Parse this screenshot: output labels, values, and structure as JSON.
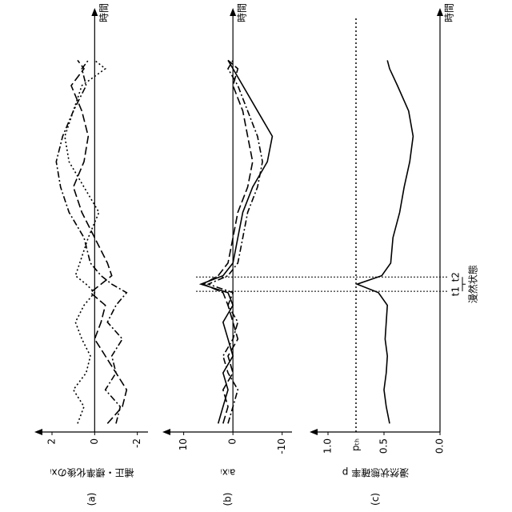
{
  "chart_data": [
    {
      "type": "line",
      "label": "(a)",
      "ylabel": "補正・標準化後のxᵢ",
      "xlabel": "時間",
      "x": [
        2,
        6,
        10,
        14,
        18,
        22,
        26,
        30,
        33,
        35,
        37,
        40,
        46,
        52,
        58,
        64,
        70,
        76,
        82,
        86,
        88
      ],
      "xlim": [
        0,
        100
      ],
      "ylim": [
        -2.5,
        2.75
      ],
      "yticks": [
        2,
        0,
        -2
      ],
      "series": [
        {
          "color": "#000",
          "dash": "dashdot",
          "values": [
            -1,
            -1.2,
            -0.5,
            -1,
            -0.8,
            -1.3,
            -0.6,
            -1,
            -1.5,
            -0.8,
            -0.3,
            0.2,
            0.5,
            1.2,
            1.6,
            1.8,
            1.5,
            1,
            0.4,
            0.6,
            0.3
          ]
        },
        {
          "color": "#000",
          "dash": "dotted",
          "values": [
            0.8,
            0.5,
            1,
            0.4,
            0.2,
            0.6,
            0.9,
            0.5,
            0,
            0.4,
            0.9,
            0.7,
            0.3,
            -0.2,
            0.5,
            1.2,
            1.4,
            1,
            0.6,
            -0.5,
            0
          ]
        },
        {
          "color": "#000",
          "dash": "longdash",
          "values": [
            -0.6,
            -1.3,
            -1.5,
            -1,
            -0.5,
            0,
            -0.3,
            -0.5,
            0.2,
            -0.3,
            -0.8,
            -0.6,
            0,
            0.6,
            1,
            0.5,
            0.3,
            0.6,
            1.1,
            0.5,
            0.8
          ]
        }
      ]
    },
    {
      "type": "line",
      "label": "(b)",
      "ylabel": "aᵢxᵢ",
      "xlabel": "時間",
      "x": [
        2,
        6,
        10,
        14,
        18,
        22,
        26,
        30,
        33,
        35,
        37,
        40,
        46,
        52,
        58,
        64,
        70,
        76,
        82,
        86,
        88
      ],
      "xlim": [
        0,
        100
      ],
      "ylim": [
        -12,
        14
      ],
      "yticks": [
        10,
        0,
        -10
      ],
      "series": [
        {
          "color": "#000",
          "dash": "solid",
          "values": [
            3,
            2,
            1,
            2,
            0,
            1,
            2,
            0,
            1,
            6.5,
            2,
            0,
            -1,
            -2,
            -4,
            -7,
            -8,
            -5,
            -2,
            0,
            1
          ]
        },
        {
          "color": "#000",
          "dash": "dashdot",
          "values": [
            1,
            0,
            -1,
            1,
            2,
            0,
            -1,
            1,
            0,
            5,
            1,
            -1,
            -2,
            -3,
            -5,
            -6,
            -5,
            -3,
            -1,
            1,
            0
          ]
        },
        {
          "color": "#000",
          "dash": "longdash",
          "values": [
            2,
            1,
            2,
            0,
            1,
            -1,
            0,
            1,
            2,
            6,
            3,
            1,
            0,
            -1,
            -3,
            -4,
            -3,
            -2,
            0,
            -1,
            1
          ]
        }
      ]
    },
    {
      "type": "line",
      "label": "(c)",
      "ylabel": "漫然状態確率 p",
      "xlabel": "時間",
      "x": [
        2,
        6,
        10,
        14,
        18,
        22,
        26,
        30,
        33,
        35,
        37,
        40,
        46,
        52,
        58,
        64,
        70,
        76,
        82,
        86,
        88
      ],
      "xlim": [
        0,
        100
      ],
      "ylim": [
        0,
        1.15
      ],
      "yticks": [
        {
          "value": 1,
          "label": "1.0"
        },
        0.5,
        {
          "value": 0,
          "label": "0.0"
        }
      ],
      "threshold": 0.75,
      "threshold_label": "pₜₕ",
      "markers": [
        {
          "x": 33.3,
          "label": "t1"
        },
        {
          "x": 36.7,
          "label": "t2"
        }
      ],
      "markers_label": "漫然状態",
      "series": [
        {
          "color": "#000",
          "dash": "solid",
          "values": [
            0.45,
            0.48,
            0.5,
            0.48,
            0.47,
            0.49,
            0.48,
            0.47,
            0.55,
            0.74,
            0.52,
            0.44,
            0.42,
            0.36,
            0.32,
            0.27,
            0.24,
            0.28,
            0.38,
            0.45,
            0.47
          ]
        }
      ]
    }
  ]
}
